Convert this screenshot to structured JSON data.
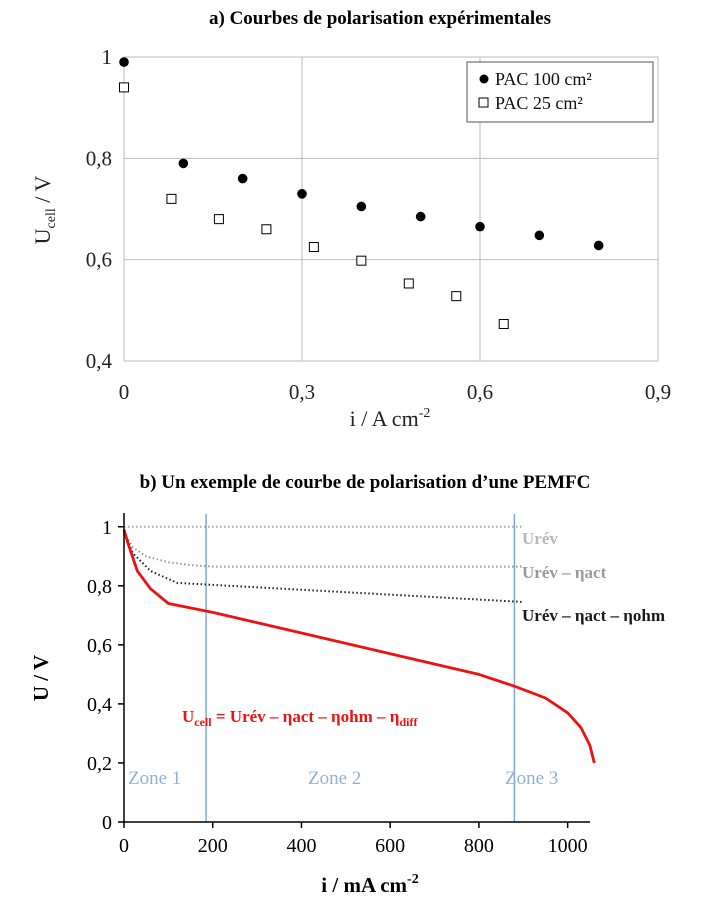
{
  "chart_data": [
    {
      "type": "scatter",
      "title": "a) Courbes de polarisation expérimentales",
      "xlabel": "i / A cm",
      "xlabel_sup": "-2",
      "ylabel": "U",
      "ylabel_sub": "cell",
      "ylabel_unit": " / V",
      "xlim": [
        0,
        0.9
      ],
      "ylim": [
        0.4,
        1.0
      ],
      "x_ticks": [
        "0",
        "0,3",
        "0,6",
        "0,9"
      ],
      "y_ticks": [
        "1",
        "0,8",
        "0,6",
        "0,4"
      ],
      "grid": true,
      "legend_position": "top-right",
      "series": [
        {
          "name": "PAC 100 cm²",
          "marker": "filled-circle",
          "color": "#000000",
          "x": [
            0,
            0.1,
            0.2,
            0.3,
            0.4,
            0.5,
            0.6,
            0.7,
            0.8
          ],
          "y": [
            0.99,
            0.79,
            0.76,
            0.73,
            0.705,
            0.685,
            0.665,
            0.648,
            0.628
          ]
        },
        {
          "name": "PAC 25 cm²",
          "marker": "open-square",
          "color": "#000000",
          "x": [
            0,
            0.08,
            0.16,
            0.24,
            0.32,
            0.4,
            0.48,
            0.56,
            0.64
          ],
          "y": [
            0.94,
            0.72,
            0.68,
            0.66,
            0.625,
            0.598,
            0.553,
            0.528,
            0.473
          ]
        }
      ]
    },
    {
      "type": "line",
      "title": "b) Un exemple de courbe de polarisation d’une PEMFC",
      "xlabel": "i / mA cm",
      "xlabel_sup": "-2",
      "ylabel": "U / V",
      "xlim": [
        0,
        1100
      ],
      "ylim": [
        0,
        1.05
      ],
      "x_ticks": [
        "0",
        "200",
        "400",
        "600",
        "800",
        "1000"
      ],
      "y_ticks": [
        "1",
        "0,8",
        "0,6",
        "0,4",
        "0,2",
        "0"
      ],
      "zones": [
        {
          "label": "Zone 1",
          "boundary_x": 185
        },
        {
          "label": "Zone 2",
          "boundary_x": 880
        },
        {
          "label": "Zone 3"
        }
      ],
      "series": [
        {
          "name": "Urév",
          "style": "dotted",
          "color": "#aaaaaa",
          "x": [
            0,
            900
          ],
          "y": [
            1.0,
            1.0
          ]
        },
        {
          "name": "Urév – ηact",
          "style": "dotted",
          "color": "#999999",
          "x": [
            0,
            20,
            50,
            100,
            150,
            200,
            900
          ],
          "y": [
            0.98,
            0.93,
            0.9,
            0.88,
            0.87,
            0.865,
            0.865
          ]
        },
        {
          "name": "Urév – ηact – ηohm",
          "style": "dotted",
          "color": "#222222",
          "x": [
            0,
            20,
            60,
            120,
            900
          ],
          "y": [
            0.98,
            0.91,
            0.85,
            0.81,
            0.745
          ]
        },
        {
          "name": "Ucell = Urév – ηact – ηohm – ηdiff",
          "style": "solid",
          "color": "#ee1111",
          "x": [
            0,
            10,
            30,
            60,
            100,
            200,
            400,
            600,
            800,
            880,
            950,
            1000,
            1030,
            1050,
            1060
          ],
          "y": [
            0.99,
            0.94,
            0.85,
            0.79,
            0.74,
            0.71,
            0.64,
            0.57,
            0.5,
            0.46,
            0.42,
            0.37,
            0.32,
            0.26,
            0.2
          ]
        }
      ],
      "labels": {
        "urev": "Urév",
        "urev_act": "Urév – ηact",
        "urev_act_ohm": "Urév – ηact – ηohm",
        "ucell_lhs": "U",
        "ucell_sub": "cell",
        "ucell_rhs": " = Urév – ηact – ηohm – η",
        "ucell_diff_sub": "diff"
      }
    }
  ]
}
